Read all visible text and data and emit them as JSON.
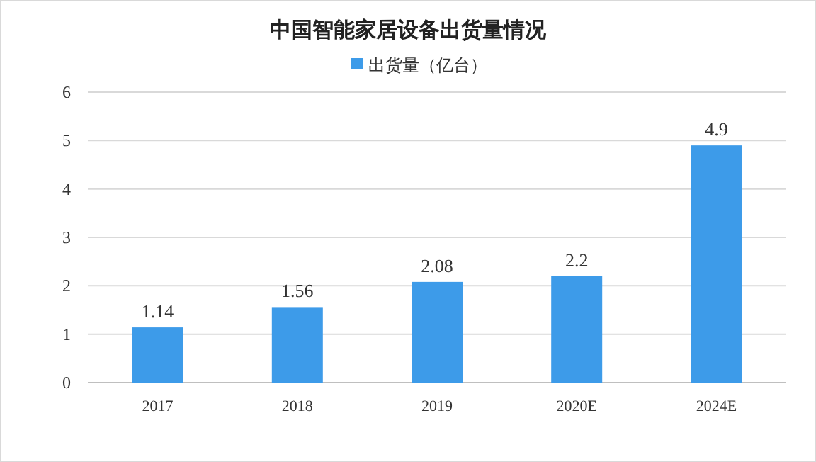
{
  "chart_data": {
    "type": "bar",
    "title": "中国智能家居设备出货量情况",
    "categories": [
      "2017",
      "2018",
      "2019",
      "2020E",
      "2024E"
    ],
    "series": [
      {
        "name": "出货量（亿台）",
        "color": "#3d9be9",
        "values": [
          1.14,
          1.56,
          2.08,
          2.2,
          4.9
        ]
      }
    ],
    "ylim": [
      0,
      6
    ],
    "yticks": [
      0,
      1,
      2,
      3,
      4,
      5,
      6
    ],
    "grid": "y",
    "legend": "top",
    "data_labels": true
  }
}
